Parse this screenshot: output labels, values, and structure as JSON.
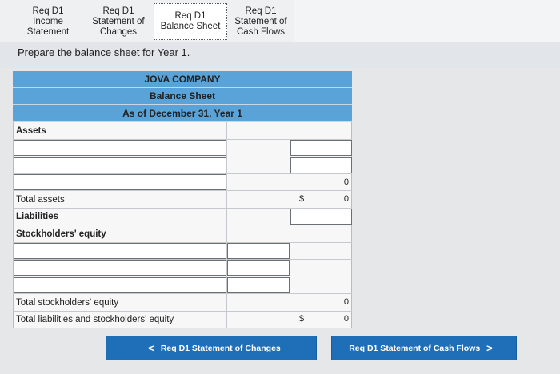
{
  "tabs": [
    {
      "lines": [
        "Req D1",
        "Income",
        "Statement"
      ],
      "active": false
    },
    {
      "lines": [
        "Req D1",
        "Statement of",
        "Changes"
      ],
      "active": false
    },
    {
      "lines": [
        "Req D1",
        "Balance Sheet"
      ],
      "active": true
    },
    {
      "lines": [
        "Req D1",
        "Statement of",
        "Cash Flows"
      ],
      "active": false
    }
  ],
  "instruction": "Prepare the balance sheet for Year 1.",
  "sheet": {
    "company": "JOVA COMPANY",
    "title": "Balance Sheet",
    "date": "As of December 31, Year 1",
    "assets_label": "Assets",
    "total_assets_label": "Total assets",
    "total_assets_prefix": "$",
    "total_assets_value": "0",
    "assets_last_row_value": "0",
    "liabilities_label": "Liabilities",
    "equity_label": "Stockholders' equity",
    "total_equity_label": "Total stockholders' equity",
    "total_equity_value": "0",
    "total_liab_equity_label": "Total liabilities and stockholders' equity",
    "total_liab_equity_prefix": "$",
    "total_liab_equity_value": "0"
  },
  "nav": {
    "prev_label": "Req D1 Statement of Changes",
    "next_label": "Req D1 Statement of Cash Flows",
    "prev_chevron": "<",
    "next_chevron": ">"
  }
}
